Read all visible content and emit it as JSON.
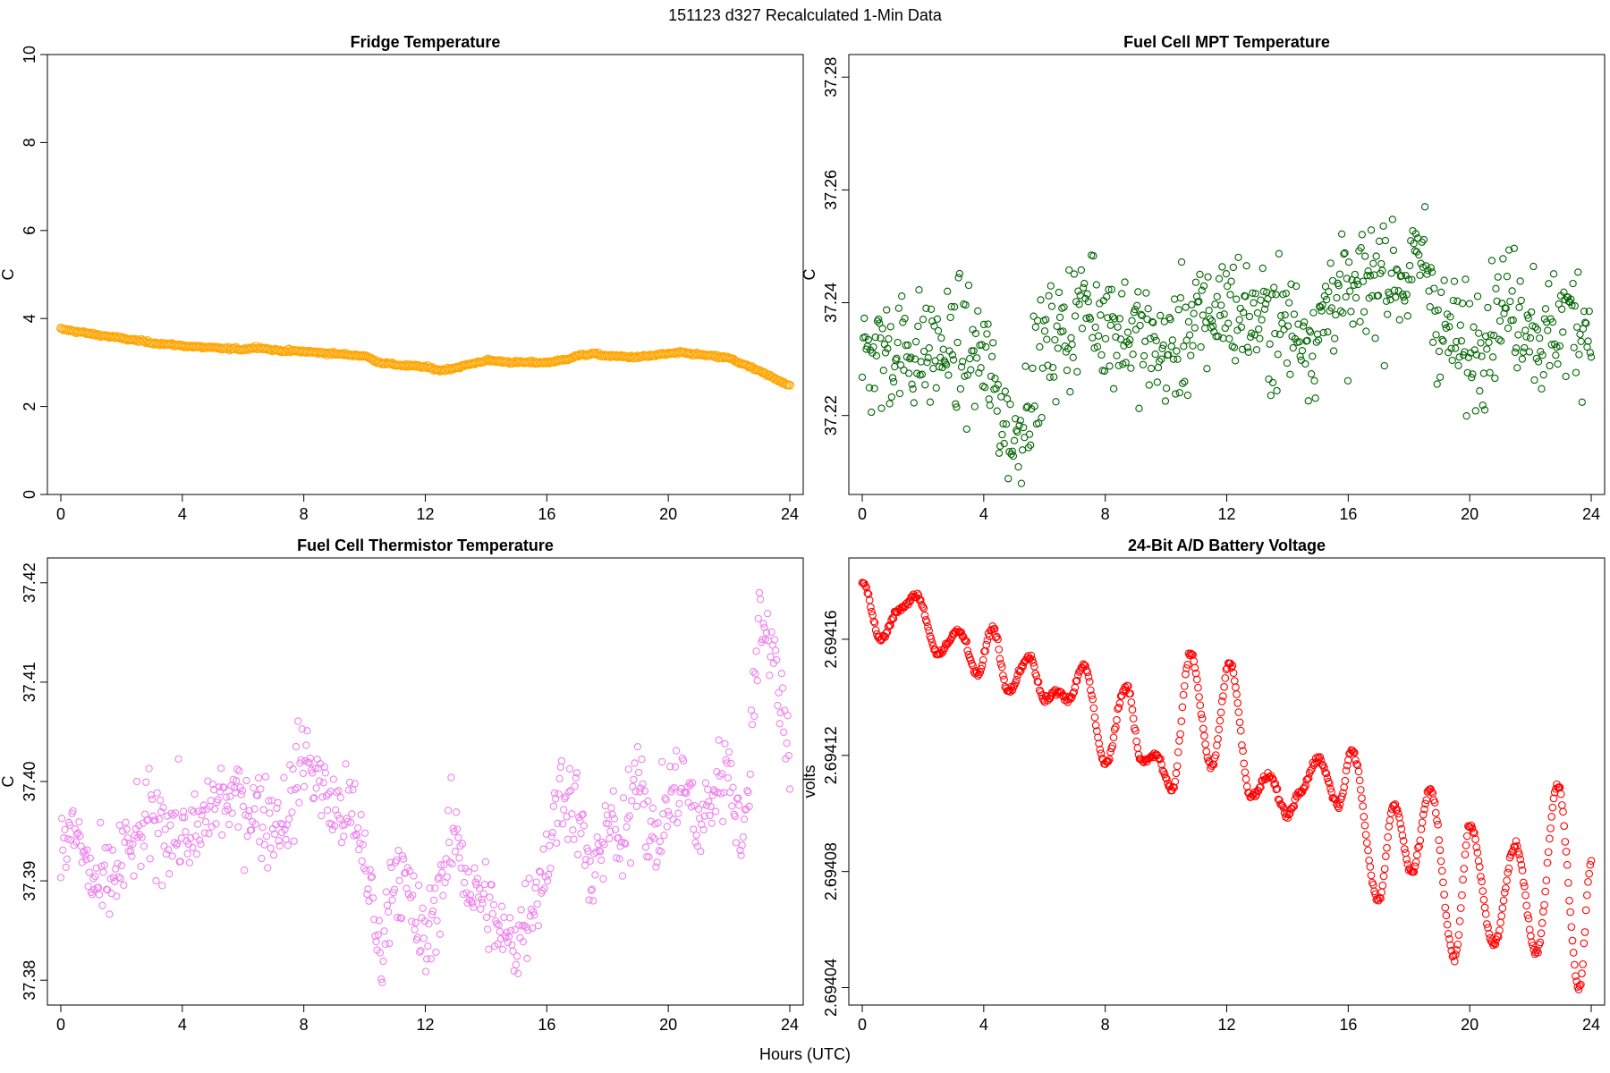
{
  "figure": {
    "suptitle": "151123   d327   Recalculated 1-Min Data",
    "xlabel": "Hours (UTC)"
  },
  "chart_data": [
    {
      "type": "scatter",
      "title": "Fridge Temperature",
      "ylabel": "C",
      "xlim": [
        0,
        24
      ],
      "ylim": [
        0,
        10
      ],
      "xticks": [
        0,
        4,
        8,
        12,
        16,
        20,
        24
      ],
      "xtick_labels": [
        "0",
        "4",
        "8",
        "12",
        "16",
        "20",
        "24"
      ],
      "yticks": [
        0,
        2,
        4,
        6,
        8,
        10
      ],
      "ytick_labels": [
        "0",
        "2",
        "4",
        "6",
        "8",
        "10"
      ],
      "color": "#FFA500",
      "marker": "open-circle",
      "series": [
        {
          "x": [
            0,
            1,
            2,
            3,
            4,
            5,
            6,
            6.5,
            7,
            8,
            9,
            10,
            10.5,
            11,
            12,
            12.5,
            13,
            14,
            15,
            16,
            16.5,
            17,
            17.5,
            18,
            19,
            20,
            20.5,
            21,
            22,
            23,
            24
          ],
          "y": [
            3.76,
            3.65,
            3.55,
            3.45,
            3.38,
            3.33,
            3.3,
            3.35,
            3.28,
            3.25,
            3.2,
            3.15,
            3.0,
            2.95,
            2.9,
            2.82,
            2.88,
            3.05,
            3.0,
            3.0,
            3.05,
            3.15,
            3.2,
            3.15,
            3.12,
            3.2,
            3.22,
            3.18,
            3.1,
            2.8,
            2.48
          ]
        }
      ]
    },
    {
      "type": "scatter",
      "title": "Fuel Cell MPT Temperature",
      "ylabel": "C",
      "xlim": [
        0,
        24
      ],
      "ylim": [
        37.206,
        37.284
      ],
      "xticks": [
        0,
        4,
        8,
        12,
        16,
        20,
        24
      ],
      "xtick_labels": [
        "0",
        "4",
        "8",
        "12",
        "16",
        "20",
        "24"
      ],
      "yticks": [
        37.22,
        37.24,
        37.26,
        37.28
      ],
      "ytick_labels": [
        "37.22",
        "37.24",
        "37.26",
        "37.28"
      ],
      "color": "#006400",
      "marker": "open-circle",
      "series": [
        {
          "x": [
            0,
            1,
            2,
            3,
            4,
            4.5,
            5,
            5.5,
            6,
            7,
            7.5,
            8,
            9,
            10,
            11,
            12,
            12.5,
            13,
            14,
            15,
            15.5,
            16,
            17,
            18,
            18.5,
            19,
            20,
            21,
            22,
            22.5,
            23,
            24
          ],
          "y": [
            37.23,
            37.232,
            37.231,
            37.232,
            37.23,
            37.222,
            37.215,
            37.224,
            37.232,
            37.237,
            37.241,
            37.237,
            37.234,
            37.231,
            37.236,
            37.24,
            37.238,
            37.237,
            37.236,
            37.234,
            37.243,
            37.239,
            37.246,
            37.244,
            37.249,
            37.236,
            37.231,
            37.24,
            37.238,
            37.232,
            37.238,
            37.236
          ]
        }
      ]
    },
    {
      "type": "scatter",
      "title": "Fuel Cell Thermistor Temperature",
      "ylabel": "C",
      "xlim": [
        0,
        24
      ],
      "ylim": [
        37.3775,
        37.4225
      ],
      "xticks": [
        0,
        4,
        8,
        12,
        16,
        20,
        24
      ],
      "xtick_labels": [
        "0",
        "4",
        "8",
        "12",
        "16",
        "20",
        "24"
      ],
      "yticks": [
        37.38,
        37.39,
        37.4,
        37.41,
        37.42
      ],
      "ytick_labels": [
        "37.38",
        "37.39",
        "37.40",
        "37.41",
        "37.42"
      ],
      "color": "#EE82EE",
      "marker": "open-circle",
      "series": [
        {
          "x": [
            0,
            0.5,
            1,
            1.5,
            2,
            3,
            4,
            4.5,
            5,
            6,
            7,
            7.5,
            8,
            9,
            9.5,
            10,
            10.5,
            11,
            11.5,
            12,
            12.5,
            13,
            13.5,
            14,
            14.5,
            15,
            15.5,
            16,
            16.5,
            17,
            17.5,
            18,
            18.5,
            19,
            19.5,
            20,
            20.5,
            21,
            21.5,
            22,
            22.5,
            23,
            23.5,
            24
          ],
          "y": [
            37.393,
            37.395,
            37.39,
            37.389,
            37.392,
            37.396,
            37.395,
            37.394,
            37.398,
            37.398,
            37.396,
            37.397,
            37.403,
            37.397,
            37.397,
            37.393,
            37.382,
            37.392,
            37.388,
            37.383,
            37.39,
            37.395,
            37.389,
            37.388,
            37.384,
            37.384,
            37.388,
            37.392,
            37.4,
            37.397,
            37.389,
            37.397,
            37.392,
            37.403,
            37.393,
            37.398,
            37.4,
            37.395,
            37.399,
            37.402,
            37.393,
            37.418,
            37.412,
            37.403
          ]
        }
      ]
    },
    {
      "type": "scatter",
      "title": "24-Bit A/D Battery Voltage",
      "ylabel": "volts",
      "xlim": [
        0,
        24
      ],
      "ylim": [
        2.694034,
        2.694188
      ],
      "xticks": [
        0,
        4,
        8,
        12,
        16,
        20,
        24
      ],
      "xtick_labels": [
        "0",
        "4",
        "8",
        "12",
        "16",
        "20",
        "24"
      ],
      "yticks": [
        2.69404,
        2.69408,
        2.69412,
        2.69416
      ],
      "ytick_labels": [
        "2.69404",
        "2.69408",
        "2.69412",
        "2.69416"
      ],
      "color": "#FF0000",
      "marker": "open-circle",
      "series": [
        {
          "x": [
            0,
            0.6,
            1.2,
            1.8,
            2.5,
            3.2,
            3.8,
            4.3,
            4.8,
            5.5,
            6.0,
            6.4,
            6.8,
            7.3,
            8.0,
            8.7,
            9.2,
            9.7,
            10.2,
            10.8,
            11.5,
            12.1,
            12.8,
            13.4,
            14.0,
            14.4,
            15.0,
            15.7,
            16.1,
            17.0,
            17.5,
            18.1,
            18.7,
            19.5,
            20.0,
            20.8,
            21.5,
            22.2,
            22.9,
            23.6,
            24.0
          ],
          "y": [
            2.69418,
            2.69416,
            2.69417,
            2.694175,
            2.694155,
            2.694163,
            2.694148,
            2.694164,
            2.694142,
            2.694154,
            2.694139,
            2.694142,
            2.694139,
            2.694151,
            2.694117,
            2.694144,
            2.694118,
            2.69412,
            2.694108,
            2.694155,
            2.694116,
            2.694152,
            2.694106,
            2.694113,
            2.694099,
            2.694107,
            2.694119,
            2.694103,
            2.694122,
            2.69407,
            2.694103,
            2.69408,
            2.694108,
            2.69405,
            2.694096,
            2.694055,
            2.694089,
            2.694052,
            2.69411,
            2.69404,
            2.694083
          ]
        }
      ]
    }
  ]
}
